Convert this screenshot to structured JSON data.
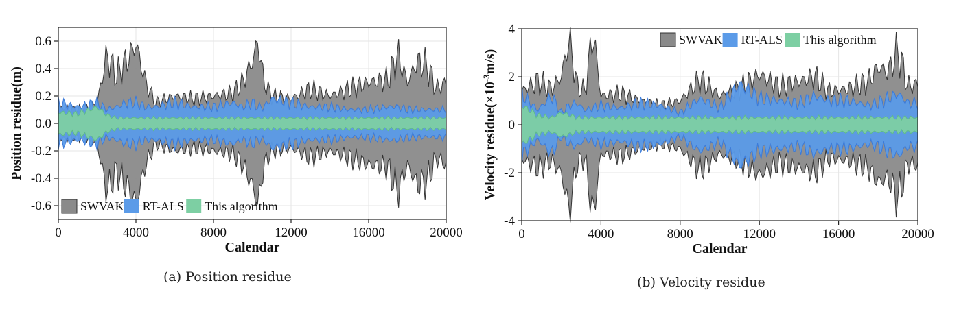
{
  "captions": {
    "a": "(a) Position residue",
    "b": "(b) Velocity residue"
  },
  "chart_data": [
    {
      "type": "area",
      "xlabel": "Calendar",
      "ylabel": "Position residue(m)",
      "xlim": [
        0,
        20000
      ],
      "ylim": [
        -0.7,
        0.7
      ],
      "xticks": [
        0,
        4000,
        8000,
        12000,
        16000,
        20000
      ],
      "yticks": [
        -0.6,
        -0.4,
        -0.2,
        0.0,
        0.2,
        0.4,
        0.6
      ],
      "grid": true,
      "legend_position": "bottom-left",
      "x": [
        0,
        1000,
        2000,
        2500,
        3000,
        3500,
        4000,
        4500,
        5000,
        6000,
        7000,
        8000,
        9000,
        9500,
        10000,
        10300,
        10600,
        11000,
        12000,
        13000,
        14000,
        15000,
        16000,
        17000,
        17500,
        18000,
        18500,
        19000,
        19500,
        20000
      ],
      "series": [
        {
          "name": "SWVAKF",
          "color": "#8a8a8a",
          "upper": [
            0.12,
            0.1,
            0.15,
            0.5,
            0.35,
            0.45,
            0.58,
            0.3,
            0.15,
            0.2,
            0.18,
            0.2,
            0.22,
            0.3,
            0.45,
            0.6,
            0.3,
            0.2,
            0.18,
            0.25,
            0.2,
            0.25,
            0.3,
            0.32,
            0.5,
            0.3,
            0.45,
            0.42,
            0.25,
            0.3
          ]
        },
        {
          "name": "RT-ALS",
          "color": "#5b9be8",
          "upper": [
            0.15,
            0.12,
            0.15,
            0.1,
            0.12,
            0.15,
            0.15,
            0.12,
            0.12,
            0.15,
            0.12,
            0.12,
            0.15,
            0.12,
            0.15,
            0.12,
            0.12,
            0.18,
            0.15,
            0.12,
            0.12,
            0.1,
            0.1,
            0.12,
            0.12,
            0.1,
            0.1,
            0.1,
            0.1,
            0.1
          ]
        },
        {
          "name": "This algorithm",
          "color": "#7dcfa3",
          "upper": [
            0.08,
            0.07,
            0.12,
            0.06,
            0.04,
            0.04,
            0.04,
            0.04,
            0.04,
            0.04,
            0.04,
            0.04,
            0.04,
            0.04,
            0.04,
            0.04,
            0.04,
            0.04,
            0.04,
            0.04,
            0.04,
            0.04,
            0.04,
            0.04,
            0.04,
            0.04,
            0.04,
            0.04,
            0.04,
            0.04
          ]
        }
      ]
    },
    {
      "type": "area",
      "xlabel": "Calendar",
      "ylabel_main": "Velocity residue(×10",
      "ylabel_sup": "-3",
      "ylabel_end": "m/s)",
      "xlim": [
        0,
        20000
      ],
      "ylim": [
        -4,
        4
      ],
      "xticks": [
        0,
        4000,
        8000,
        12000,
        16000,
        20000
      ],
      "yticks": [
        -4,
        -2,
        0,
        2,
        4
      ],
      "grid": true,
      "legend_position": "top-right",
      "x": [
        0,
        800,
        1500,
        2000,
        2400,
        2800,
        3200,
        3600,
        4000,
        5000,
        6000,
        7000,
        8000,
        9000,
        10000,
        11000,
        12000,
        13000,
        14000,
        14800,
        15500,
        16500,
        17500,
        18000,
        18500,
        19000,
        19500,
        20000
      ],
      "series": [
        {
          "name": "SWVAKF",
          "color": "#8a8a8a",
          "upper": [
            1.4,
            1.8,
            1.5,
            2.0,
            3.6,
            1.6,
            1.4,
            3.9,
            1.2,
            1.3,
            1.0,
            0.8,
            1.0,
            1.9,
            1.2,
            1.5,
            2.1,
            1.6,
            1.8,
            2.0,
            1.4,
            1.5,
            1.8,
            2.4,
            2.2,
            3.1,
            1.6,
            1.7
          ]
        },
        {
          "name": "RT-ALS",
          "color": "#5b9be8",
          "upper": [
            1.3,
            0.6,
            1.2,
            0.5,
            0.8,
            0.9,
            0.6,
            0.7,
            0.8,
            0.7,
            0.9,
            0.8,
            0.5,
            1.1,
            0.7,
            1.7,
            1.1,
            1.0,
            0.9,
            1.2,
            1.0,
            1.0,
            0.8,
            0.9,
            1.1,
            1.3,
            0.9,
            0.9
          ]
        },
        {
          "name": "This algorithm",
          "color": "#7dcfa3",
          "upper": [
            0.8,
            0.4,
            0.3,
            0.5,
            0.4,
            0.3,
            0.3,
            0.3,
            0.3,
            0.3,
            0.3,
            0.3,
            0.3,
            0.3,
            0.3,
            0.3,
            0.3,
            0.3,
            0.3,
            0.3,
            0.3,
            0.3,
            0.3,
            0.3,
            0.3,
            0.3,
            0.3,
            0.3
          ]
        }
      ]
    }
  ]
}
